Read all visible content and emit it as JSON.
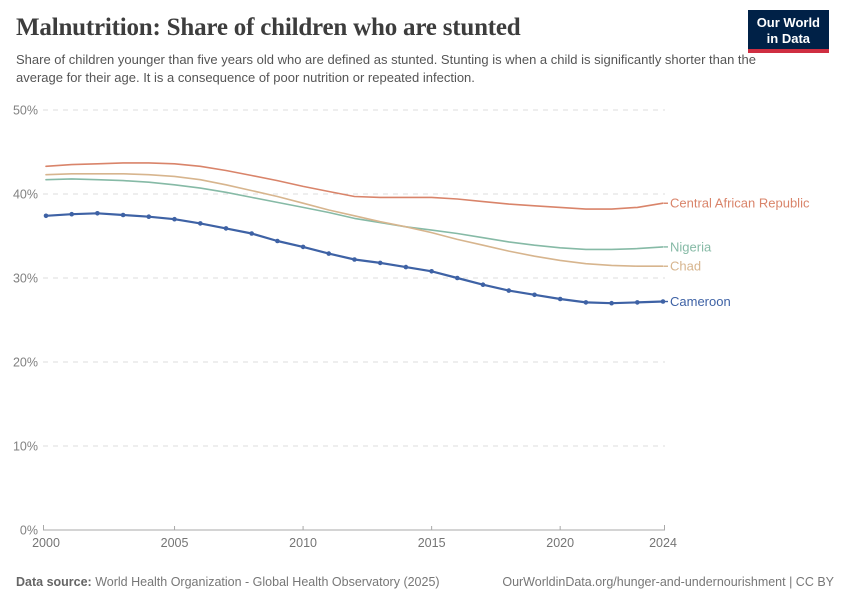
{
  "header": {
    "title": "Malnutrition: Share of children who are stunted",
    "subtitle": "Share of children younger than five years old who are defined as stunted. Stunting is when a child is significantly shorter than the average for their age. It is a consequence of poor nutrition or repeated infection.",
    "logo": {
      "line1": "Our World",
      "line2": "in Data",
      "bg_color": "#002147",
      "stripe_color": "#CF2E41"
    }
  },
  "chart_data": {
    "type": "line",
    "title": "Malnutrition: Share of children who are stunted",
    "xlabel": "",
    "ylabel": "",
    "x": [
      2000,
      2001,
      2002,
      2003,
      2004,
      2005,
      2006,
      2007,
      2008,
      2009,
      2010,
      2011,
      2012,
      2013,
      2014,
      2015,
      2016,
      2017,
      2018,
      2019,
      2020,
      2021,
      2022,
      2023,
      2024
    ],
    "series": [
      {
        "name": "Central African Republic",
        "color": "#D9846A",
        "values": [
          43.3,
          43.5,
          43.6,
          43.7,
          43.7,
          43.6,
          43.3,
          42.8,
          42.2,
          41.6,
          40.9,
          40.3,
          39.7,
          39.6,
          39.6,
          39.6,
          39.4,
          39.1,
          38.8,
          38.6,
          38.4,
          38.2,
          38.2,
          38.4,
          38.9
        ],
        "markers": false
      },
      {
        "name": "Nigeria",
        "color": "#86BAA6",
        "values": [
          41.7,
          41.8,
          41.7,
          41.6,
          41.4,
          41.1,
          40.7,
          40.2,
          39.6,
          39.0,
          38.4,
          37.8,
          37.1,
          36.6,
          36.1,
          35.7,
          35.3,
          34.8,
          34.3,
          33.9,
          33.6,
          33.4,
          33.4,
          33.5,
          33.7
        ],
        "markers": false
      },
      {
        "name": "Chad",
        "color": "#D7B58E",
        "values": [
          42.3,
          42.4,
          42.4,
          42.4,
          42.3,
          42.1,
          41.7,
          41.1,
          40.4,
          39.7,
          38.9,
          38.1,
          37.4,
          36.7,
          36.1,
          35.4,
          34.6,
          33.9,
          33.2,
          32.6,
          32.1,
          31.7,
          31.5,
          31.4,
          31.4
        ],
        "markers": false
      },
      {
        "name": "Cameroon",
        "color": "#3E62A5",
        "values": [
          37.4,
          37.6,
          37.7,
          37.5,
          37.3,
          37.0,
          36.5,
          35.9,
          35.3,
          34.4,
          33.7,
          32.9,
          32.2,
          31.8,
          31.3,
          30.8,
          30.0,
          29.2,
          28.5,
          28.0,
          27.5,
          27.1,
          27.0,
          27.1,
          27.2
        ],
        "markers": true
      }
    ],
    "ylim": [
      0,
      50
    ],
    "yticks": [
      0,
      10,
      20,
      30,
      40,
      50
    ],
    "ytick_suffix": "%",
    "xticks": [
      2000,
      2005,
      2010,
      2015,
      2020,
      2024
    ],
    "grid": "horizontal-dashed",
    "legend_position": "right-of-line-ends",
    "grid_color": "#dedede",
    "axis_color": "#a8a8a8",
    "tick_label_color": "#818181"
  },
  "footer": {
    "source_label": "Data source:",
    "source_text": " World Health Organization - Global Health Observatory (2025)",
    "link_text": "OurWorldinData.org/hunger-and-undernourishment | CC BY"
  }
}
